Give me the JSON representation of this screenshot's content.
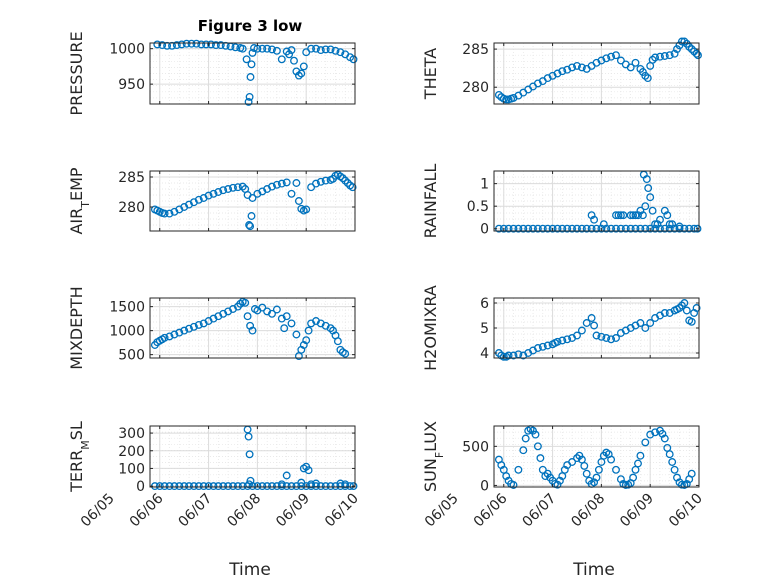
{
  "figure": {
    "title": "Figure 3 low",
    "xlabel": "Time"
  },
  "colors": {
    "marker": "#0072BD",
    "axis": "#262626",
    "grid": "#dcdcdc"
  },
  "chart_data": [
    {
      "type": "scatter",
      "name": "pressure",
      "ylabel": "PRESSURE",
      "ylabel_sub": "",
      "xlim": [
        5.8,
        10.0
      ],
      "ylim": [
        922,
        1008
      ],
      "yticks": [
        950,
        1000
      ],
      "x": [
        5.95,
        6.05,
        6.15,
        6.25,
        6.35,
        6.45,
        6.55,
        6.65,
        6.75,
        6.85,
        6.95,
        7.05,
        7.15,
        7.25,
        7.35,
        7.45,
        7.55,
        7.65,
        7.7,
        7.78,
        7.82,
        7.84,
        7.86,
        7.88,
        7.9,
        7.93,
        8.0,
        8.1,
        8.2,
        8.3,
        8.4,
        8.5,
        8.6,
        8.65,
        8.7,
        8.75,
        8.8,
        8.85,
        8.9,
        8.95,
        9.0,
        9.1,
        9.2,
        9.3,
        9.4,
        9.5,
        9.6,
        9.7,
        9.8,
        9.9,
        9.97
      ],
      "y": [
        1006,
        1005,
        1004,
        1004,
        1005,
        1006,
        1007,
        1007,
        1007,
        1006,
        1006,
        1006,
        1005,
        1005,
        1004,
        1003,
        1002,
        1001,
        1000,
        985,
        925,
        932,
        960,
        978,
        994,
        1001,
        1000,
        1000,
        1000,
        999,
        997,
        985,
        996,
        992,
        998,
        983,
        968,
        962,
        965,
        975,
        995,
        1000,
        1000,
        998,
        999,
        999,
        997,
        995,
        992,
        988,
        985
      ]
    },
    {
      "type": "scatter",
      "name": "theta",
      "ylabel": "THETA",
      "ylabel_sub": "",
      "xlim": [
        5.8,
        10.0
      ],
      "ylim": [
        277.8,
        285.8
      ],
      "yticks": [
        280,
        285
      ],
      "x": [
        5.9,
        5.95,
        6.0,
        6.05,
        6.1,
        6.15,
        6.2,
        6.3,
        6.4,
        6.5,
        6.6,
        6.7,
        6.8,
        6.9,
        7.0,
        7.1,
        7.2,
        7.3,
        7.4,
        7.5,
        7.6,
        7.7,
        7.8,
        7.9,
        8.0,
        8.1,
        8.2,
        8.3,
        8.4,
        8.5,
        8.6,
        8.7,
        8.8,
        8.85,
        8.9,
        8.95,
        9.0,
        9.05,
        9.1,
        9.2,
        9.3,
        9.4,
        9.5,
        9.55,
        9.6,
        9.65,
        9.7,
        9.75,
        9.8,
        9.85,
        9.9,
        9.95,
        9.98
      ],
      "y": [
        279,
        278.7,
        278.5,
        278.4,
        278.4,
        278.5,
        278.6,
        278.9,
        279.3,
        279.7,
        280.1,
        280.5,
        280.8,
        281.2,
        281.5,
        281.8,
        282.1,
        282.3,
        282.6,
        282.8,
        282.6,
        282.4,
        282.8,
        283.2,
        283.5,
        283.8,
        284.0,
        284.2,
        283.5,
        283.0,
        282.6,
        283.2,
        282.4,
        282.0,
        281.5,
        281.2,
        282.8,
        283.6,
        283.9,
        284.0,
        284.1,
        284.2,
        284.4,
        285.0,
        285.5,
        286.0,
        286.0,
        285.7,
        285.3,
        285.0,
        284.7,
        284.4,
        284.2
      ]
    },
    {
      "type": "scatter",
      "name": "air_temp",
      "ylabel": "AIR",
      "ylabel_sub": "T",
      "ylabel_rest": "EMP",
      "xlim": [
        5.8,
        10.0
      ],
      "ylim": [
        276,
        286
      ],
      "yticks": [
        280,
        285
      ],
      "x": [
        5.9,
        5.95,
        6.0,
        6.05,
        6.1,
        6.2,
        6.3,
        6.4,
        6.5,
        6.6,
        6.7,
        6.8,
        6.9,
        7.0,
        7.1,
        7.2,
        7.3,
        7.4,
        7.5,
        7.6,
        7.7,
        7.75,
        7.8,
        7.83,
        7.85,
        7.88,
        7.9,
        8.0,
        8.1,
        8.2,
        8.3,
        8.4,
        8.5,
        8.6,
        8.7,
        8.8,
        8.85,
        8.9,
        8.95,
        9.0,
        9.1,
        9.2,
        9.3,
        9.4,
        9.5,
        9.55,
        9.6,
        9.65,
        9.7,
        9.75,
        9.8,
        9.85,
        9.9,
        9.95
      ],
      "y": [
        279.6,
        279.4,
        279.2,
        279.0,
        278.9,
        278.9,
        279.2,
        279.6,
        280.0,
        280.4,
        280.8,
        281.2,
        281.5,
        281.9,
        282.2,
        282.5,
        282.8,
        283.0,
        283.2,
        283.3,
        283.4,
        283.0,
        282.0,
        277.0,
        276.8,
        278.5,
        281.5,
        282.2,
        282.6,
        283.0,
        283.4,
        283.7,
        283.9,
        284.1,
        282.2,
        284.0,
        281.0,
        279.7,
        279.4,
        279.6,
        283.3,
        283.9,
        284.2,
        284.4,
        284.5,
        284.7,
        285.2,
        285.4,
        285.1,
        284.8,
        284.4,
        284.0,
        283.6,
        283.3
      ]
    },
    {
      "type": "scatter",
      "name": "rainfall",
      "ylabel": "RAINFALL",
      "ylabel_sub": "",
      "xlim": [
        5.8,
        10.0
      ],
      "ylim": [
        -0.05,
        1.28
      ],
      "yticks": [
        0,
        0.5,
        1
      ],
      "yticklabels": [
        "0",
        "0.5",
        "1"
      ],
      "x": [
        5.9,
        6.0,
        6.1,
        6.2,
        6.3,
        6.4,
        6.5,
        6.6,
        6.7,
        6.8,
        6.9,
        7.0,
        7.1,
        7.2,
        7.3,
        7.4,
        7.5,
        7.6,
        7.7,
        7.8,
        7.9,
        8.0,
        8.1,
        8.2,
        8.3,
        8.4,
        8.5,
        8.6,
        8.7,
        8.8,
        8.9,
        9.0,
        9.1,
        9.2,
        9.3,
        9.4,
        9.5,
        9.6,
        9.7,
        9.8,
        9.9,
        9.97,
        7.8,
        7.85,
        8.05,
        8.3,
        8.35,
        8.4,
        8.45,
        8.6,
        8.65,
        8.7,
        8.75,
        8.8,
        8.85,
        8.87,
        8.9,
        8.93,
        8.96,
        9.0,
        9.05,
        9.1,
        9.15,
        9.2,
        9.3,
        9.35,
        9.4,
        9.45,
        9.6
      ],
      "y": [
        0,
        0,
        0,
        0,
        0,
        0,
        0,
        0,
        0,
        0,
        0,
        0,
        0,
        0,
        0,
        0,
        0,
        0,
        0,
        0,
        0,
        0,
        0,
        0,
        0,
        0,
        0,
        0,
        0,
        0,
        0,
        0,
        0,
        0,
        0,
        0,
        0,
        0,
        0,
        0,
        0,
        0,
        0.3,
        0.2,
        0.1,
        0.3,
        0.3,
        0.3,
        0.3,
        0.3,
        0.3,
        0.3,
        0.3,
        0.4,
        0.3,
        1.2,
        0.5,
        1.1,
        0.9,
        0.7,
        0.4,
        0.1,
        0.1,
        0.2,
        0.4,
        0.3,
        0.1,
        0.1,
        0.05
      ]
    },
    {
      "type": "scatter",
      "name": "mixdepth",
      "ylabel": "MIXDEPTH",
      "ylabel_sub": "",
      "xlim": [
        5.8,
        10.0
      ],
      "ylim": [
        430,
        1680
      ],
      "yticks": [
        500,
        1000,
        1500
      ],
      "x": [
        5.9,
        5.95,
        6.0,
        6.05,
        6.1,
        6.2,
        6.3,
        6.4,
        6.5,
        6.6,
        6.7,
        6.8,
        6.9,
        7.0,
        7.1,
        7.2,
        7.3,
        7.4,
        7.5,
        7.6,
        7.65,
        7.7,
        7.75,
        7.8,
        7.85,
        7.9,
        7.95,
        8.0,
        8.1,
        8.2,
        8.3,
        8.4,
        8.5,
        8.55,
        8.6,
        8.7,
        8.8,
        8.85,
        8.9,
        8.95,
        9.0,
        9.05,
        9.1,
        9.2,
        9.3,
        9.4,
        9.5,
        9.55,
        9.6,
        9.65,
        9.7,
        9.75,
        9.8
      ],
      "y": [
        700,
        760,
        790,
        820,
        850,
        880,
        920,
        960,
        1000,
        1040,
        1080,
        1120,
        1150,
        1200,
        1250,
        1300,
        1350,
        1400,
        1450,
        1500,
        1560,
        1600,
        1580,
        1300,
        1100,
        1000,
        1450,
        1420,
        1480,
        1400,
        1350,
        1440,
        1250,
        1050,
        1300,
        1150,
        920,
        470,
        600,
        700,
        800,
        1000,
        1150,
        1200,
        1150,
        1100,
        1050,
        1000,
        900,
        780,
        600,
        550,
        520
      ]
    },
    {
      "type": "scatter",
      "name": "h2omixra",
      "ylabel": "H2OMIXRA",
      "ylabel_sub": "",
      "xlim": [
        5.8,
        10.0
      ],
      "ylim": [
        3.8,
        6.2
      ],
      "yticks": [
        4,
        5,
        6
      ],
      "x": [
        5.9,
        5.95,
        6.0,
        6.05,
        6.1,
        6.2,
        6.3,
        6.4,
        6.5,
        6.6,
        6.7,
        6.8,
        6.9,
        7.0,
        7.05,
        7.1,
        7.2,
        7.3,
        7.4,
        7.5,
        7.6,
        7.7,
        7.8,
        7.85,
        7.9,
        8.0,
        8.1,
        8.2,
        8.3,
        8.4,
        8.5,
        8.6,
        8.7,
        8.8,
        8.9,
        9.0,
        9.1,
        9.2,
        9.3,
        9.4,
        9.5,
        9.55,
        9.6,
        9.65,
        9.7,
        9.75,
        9.8,
        9.85,
        9.9,
        9.95
      ],
      "y": [
        4.0,
        3.9,
        3.85,
        3.85,
        3.9,
        3.9,
        3.95,
        3.9,
        4.0,
        4.1,
        4.2,
        4.25,
        4.3,
        4.35,
        4.4,
        4.45,
        4.5,
        4.55,
        4.6,
        4.7,
        4.9,
        5.2,
        5.4,
        5.1,
        4.7,
        4.65,
        4.6,
        4.55,
        4.6,
        4.8,
        4.9,
        5.0,
        5.1,
        5.2,
        5.0,
        5.2,
        5.4,
        5.5,
        5.6,
        5.6,
        5.7,
        5.75,
        5.8,
        5.9,
        6.0,
        5.7,
        5.3,
        5.25,
        5.6,
        5.8
      ]
    },
    {
      "type": "scatter",
      "name": "terr_msl",
      "ylabel": "TERR",
      "ylabel_sub": "M",
      "ylabel_rest": "SL",
      "xlim": [
        5.8,
        10.0
      ],
      "ylim": [
        -5,
        340
      ],
      "yticks": [
        0,
        100,
        200,
        300
      ],
      "x": [
        5.9,
        6.0,
        6.1,
        6.2,
        6.3,
        6.4,
        6.5,
        6.6,
        6.7,
        6.8,
        6.9,
        7.0,
        7.1,
        7.2,
        7.3,
        7.4,
        7.5,
        7.6,
        7.7,
        7.8,
        7.9,
        8.0,
        8.1,
        8.2,
        8.3,
        8.4,
        8.5,
        8.6,
        8.7,
        8.8,
        8.9,
        9.0,
        9.1,
        9.2,
        9.3,
        9.4,
        9.5,
        9.6,
        9.7,
        9.8,
        9.9,
        9.97,
        7.8,
        7.82,
        7.84,
        7.86,
        7.83,
        8.5,
        8.6,
        8.9,
        8.95,
        9.0,
        9.05,
        9.1,
        9.2,
        9.7,
        9.8
      ],
      "y": [
        0,
        0,
        0,
        0,
        0,
        0,
        0,
        0,
        0,
        0,
        0,
        0,
        0,
        0,
        0,
        0,
        0,
        0,
        0,
        0,
        0,
        0,
        0,
        0,
        0,
        0,
        0,
        0,
        0,
        0,
        0,
        0,
        0,
        0,
        0,
        0,
        0,
        0,
        0,
        0,
        0,
        0,
        320,
        280,
        180,
        30,
        10,
        10,
        60,
        20,
        100,
        110,
        90,
        10,
        15,
        15,
        10
      ]
    },
    {
      "type": "scatter",
      "name": "sun_flux",
      "ylabel": "SUN",
      "ylabel_sub": "F",
      "ylabel_rest": "LUX",
      "xlim": [
        5.8,
        10.0
      ],
      "ylim": [
        -20,
        760
      ],
      "yticks": [
        0,
        500
      ],
      "x": [
        5.9,
        5.95,
        6.0,
        6.05,
        6.1,
        6.15,
        6.2,
        6.3,
        6.4,
        6.45,
        6.5,
        6.55,
        6.6,
        6.65,
        6.7,
        6.75,
        6.8,
        6.85,
        6.9,
        6.95,
        7.0,
        7.05,
        7.1,
        7.15,
        7.2,
        7.25,
        7.3,
        7.4,
        7.5,
        7.55,
        7.6,
        7.65,
        7.7,
        7.75,
        7.8,
        7.85,
        7.9,
        7.95,
        8.0,
        8.05,
        8.1,
        8.15,
        8.2,
        8.3,
        8.4,
        8.45,
        8.5,
        8.55,
        8.6,
        8.65,
        8.7,
        8.75,
        8.8,
        8.9,
        9.0,
        9.1,
        9.2,
        9.25,
        9.3,
        9.35,
        9.4,
        9.45,
        9.5,
        9.55,
        9.6,
        9.65,
        9.7,
        9.75,
        9.8,
        9.85
      ],
      "y": [
        330,
        260,
        200,
        120,
        60,
        20,
        5,
        200,
        450,
        600,
        700,
        720,
        700,
        650,
        500,
        350,
        200,
        120,
        150,
        100,
        60,
        20,
        10,
        60,
        120,
        200,
        260,
        300,
        350,
        380,
        330,
        250,
        150,
        60,
        20,
        40,
        100,
        200,
        300,
        380,
        420,
        400,
        330,
        200,
        80,
        20,
        5,
        10,
        30,
        100,
        200,
        280,
        380,
        550,
        650,
        680,
        700,
        660,
        600,
        480,
        400,
        300,
        200,
        100,
        40,
        10,
        5,
        20,
        80,
        150
      ]
    }
  ],
  "xaxis": {
    "ticks": [
      5,
      6,
      7,
      8,
      9,
      10
    ],
    "ticklabels": [
      "06/05",
      "06/06",
      "06/07",
      "06/08",
      "06/09",
      "06/10"
    ]
  }
}
